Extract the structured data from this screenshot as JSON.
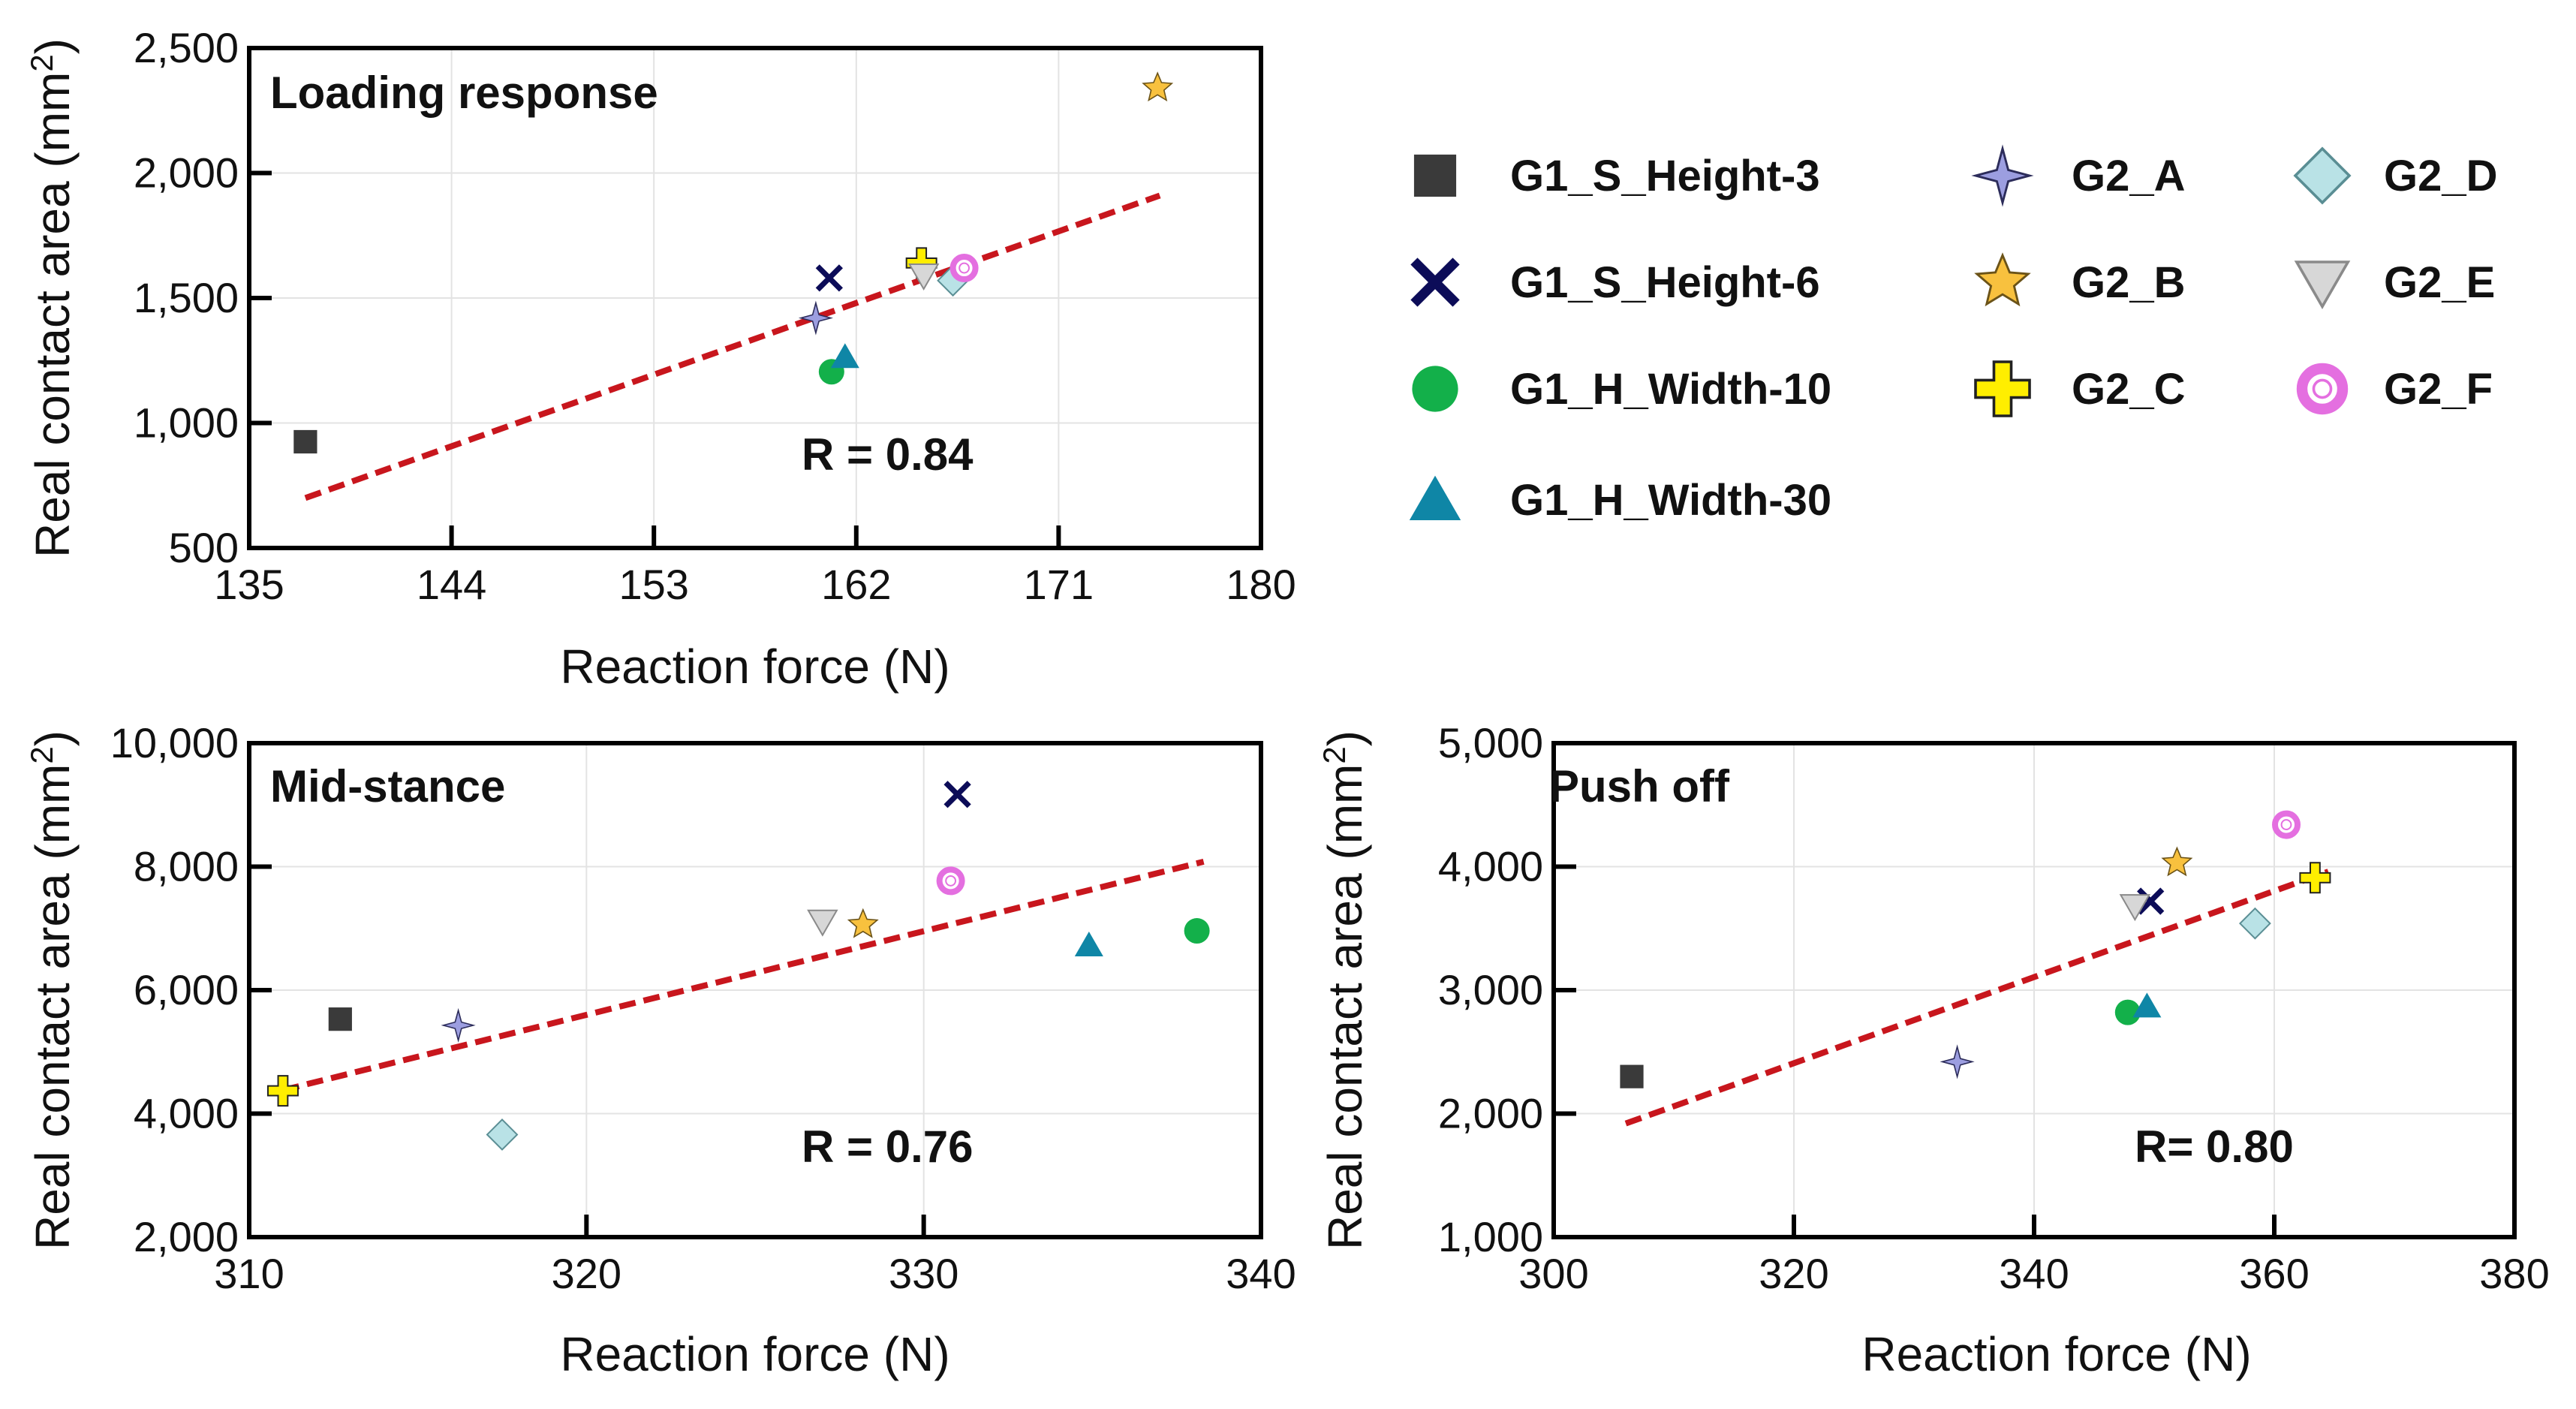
{
  "legend": [
    {
      "key": "G1_S_Height-3",
      "label": "G1_S_Height-3",
      "marker": "square",
      "color": "#3a3a3a"
    },
    {
      "key": "G1_S_Height-6",
      "label": "G1_S_Height-6",
      "marker": "x",
      "color": "#0c0c58"
    },
    {
      "key": "G1_H_Width-10",
      "label": "G1_H_Width-10",
      "marker": "circle",
      "color": "#13b04a"
    },
    {
      "key": "G1_H_Width-30",
      "label": "G1_H_Width-30",
      "marker": "triangle",
      "color": "#0f86a6"
    },
    {
      "key": "G2_A",
      "label": "G2_A",
      "marker": "star4",
      "color": "#9c9ee0"
    },
    {
      "key": "G2_B",
      "label": "G2_B",
      "marker": "star5",
      "color": "#f8c13e"
    },
    {
      "key": "G2_C",
      "label": "G2_C",
      "marker": "plus",
      "color": "#ffee00"
    },
    {
      "key": "G2_D",
      "label": "G2_D",
      "marker": "diamond",
      "color": "#b9e2e6"
    },
    {
      "key": "G2_E",
      "label": "G2_E",
      "marker": "triangle-down",
      "color": "#d7d7d7"
    },
    {
      "key": "G2_F",
      "label": "G2_F",
      "marker": "ring",
      "color": "#e46fe0"
    }
  ],
  "chart_data": [
    {
      "id": "loading",
      "type": "scatter",
      "title": "Loading response",
      "xlabel": "Reaction force (N)",
      "ylabel_main": "Real contact area (mm",
      "ylabel_sup": "2",
      "ylabel_close": ")",
      "xlim": [
        135,
        180
      ],
      "ylim": [
        500,
        2500
      ],
      "xticks": [
        135,
        144,
        153,
        162,
        171,
        180
      ],
      "xtick_labels": [
        "135",
        "144",
        "153",
        "162",
        "171",
        "180"
      ],
      "yticks": [
        500,
        1000,
        1500,
        2000,
        2500
      ],
      "ytick_labels": [
        "500",
        "1,000",
        "1,500",
        "2,000",
        "2,500"
      ],
      "r_label": "R = 0.84",
      "fit": {
        "x": [
          137.5,
          175.5
        ],
        "y": [
          700,
          1910
        ]
      },
      "points": [
        {
          "series": "G1_S_Height-3",
          "x": 137.5,
          "y": 925
        },
        {
          "series": "G1_S_Height-6",
          "x": 160.8,
          "y": 1580
        },
        {
          "series": "G1_H_Width-10",
          "x": 160.9,
          "y": 1205
        },
        {
          "series": "G1_H_Width-30",
          "x": 161.5,
          "y": 1265
        },
        {
          "series": "G2_A",
          "x": 160.2,
          "y": 1420
        },
        {
          "series": "G2_B",
          "x": 175.4,
          "y": 2340
        },
        {
          "series": "G2_C",
          "x": 164.9,
          "y": 1640
        },
        {
          "series": "G2_D",
          "x": 166.3,
          "y": 1570
        },
        {
          "series": "G2_E",
          "x": 165.0,
          "y": 1590
        },
        {
          "series": "G2_F",
          "x": 166.8,
          "y": 1620
        }
      ]
    },
    {
      "id": "midstance",
      "type": "scatter",
      "title": "Mid-stance",
      "xlabel": "Reaction force (N)",
      "ylabel_main": "Real contact area (mm",
      "ylabel_sup": "2",
      "ylabel_close": ")",
      "xlim": [
        310,
        340
      ],
      "ylim": [
        2000,
        10000
      ],
      "xticks": [
        310,
        320,
        330,
        340
      ],
      "xtick_labels": [
        "310",
        "320",
        "330",
        "340"
      ],
      "yticks": [
        2000,
        4000,
        6000,
        8000,
        10000
      ],
      "ytick_labels": [
        "2,000",
        "4,000",
        "6,000",
        "8,000",
        "10,000"
      ],
      "r_label": "R = 0.76",
      "fit": {
        "x": [
          311.0,
          338.3
        ],
        "y": [
          4380,
          8080
        ]
      },
      "points": [
        {
          "series": "G1_S_Height-3",
          "x": 312.7,
          "y": 5530
        },
        {
          "series": "G1_S_Height-6",
          "x": 331.0,
          "y": 9170
        },
        {
          "series": "G1_H_Width-10",
          "x": 338.1,
          "y": 6960
        },
        {
          "series": "G1_H_Width-30",
          "x": 334.9,
          "y": 6730
        },
        {
          "series": "G2_A",
          "x": 316.2,
          "y": 5430
        },
        {
          "series": "G2_B",
          "x": 328.2,
          "y": 7060
        },
        {
          "series": "G2_C",
          "x": 311.0,
          "y": 4370
        },
        {
          "series": "G2_D",
          "x": 317.5,
          "y": 3660
        },
        {
          "series": "G2_E",
          "x": 327.0,
          "y": 7110
        },
        {
          "series": "G2_F",
          "x": 330.8,
          "y": 7770
        }
      ]
    },
    {
      "id": "pushoff",
      "type": "scatter",
      "title": "Push off",
      "xlabel": "Reaction force (N)",
      "ylabel_main": "Real contact area (mm",
      "ylabel_sup": "2",
      "ylabel_close": ")",
      "xlim": [
        300,
        380
      ],
      "ylim": [
        1000,
        5000
      ],
      "xticks": [
        300,
        320,
        340,
        360,
        380
      ],
      "xtick_labels": [
        "300",
        "320",
        "340",
        "360",
        "380"
      ],
      "yticks": [
        1000,
        2000,
        3000,
        4000,
        5000
      ],
      "ytick_labels": [
        "1,000",
        "2,000",
        "3,000",
        "4,000",
        "5,000"
      ],
      "r_label": "R= 0.80",
      "fit": {
        "x": [
          306.0,
          364.5
        ],
        "y": [
          1920,
          3960
        ]
      },
      "points": [
        {
          "series": "G1_S_Height-3",
          "x": 306.5,
          "y": 2300
        },
        {
          "series": "G1_S_Height-6",
          "x": 349.7,
          "y": 3720
        },
        {
          "series": "G1_H_Width-10",
          "x": 347.8,
          "y": 2820
        },
        {
          "series": "G1_H_Width-30",
          "x": 349.4,
          "y": 2870
        },
        {
          "series": "G2_A",
          "x": 333.6,
          "y": 2420
        },
        {
          "series": "G2_B",
          "x": 351.9,
          "y": 4030
        },
        {
          "series": "G2_C",
          "x": 363.4,
          "y": 3910
        },
        {
          "series": "G2_D",
          "x": 358.4,
          "y": 3540
        },
        {
          "series": "G2_E",
          "x": 348.4,
          "y": 3680
        },
        {
          "series": "G2_F",
          "x": 361.0,
          "y": 4340
        }
      ]
    }
  ]
}
